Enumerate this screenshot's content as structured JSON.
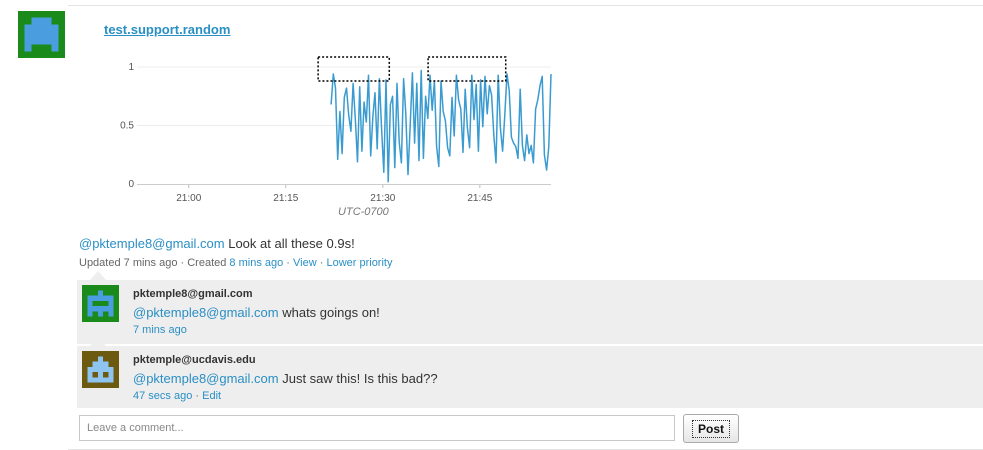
{
  "topic": {
    "title": "test.support.random"
  },
  "chart_data": {
    "type": "line",
    "ylim": [
      0,
      1
    ],
    "y_ticks": [
      "0",
      "0.5",
      "1"
    ],
    "x_ticks": [
      "21:00",
      "21:15",
      "21:30",
      "21:45"
    ],
    "xlabel": "UTC-0700",
    "series_color": "#3a9bd0",
    "series": [
      {
        "values": [
          0.68,
          0.94,
          0.82,
          0.21,
          0.62,
          0.26,
          0.74,
          0.82,
          0.59,
          0.45,
          0.86,
          0.56,
          0.19,
          0.83,
          0.28,
          0.7,
          0.53,
          0.93,
          0.24,
          0.58,
          0.78,
          0.3,
          0.9,
          0.47,
          0.1,
          0.89,
          0.02,
          0.68,
          0.75,
          0.14,
          0.86,
          0.36,
          0.18,
          0.9,
          0.6,
          0.08,
          0.5,
          0.95,
          0.35,
          0.86,
          0.2,
          0.97,
          0.22,
          0.75,
          0.56,
          0.93,
          0.63,
          0.88,
          0.32,
          0.15,
          0.88,
          0.62,
          0.54,
          0.31,
          0.24,
          0.74,
          0.41,
          0.93,
          0.72,
          0.64,
          0.27,
          0.81,
          0.48,
          0.31,
          0.93,
          0.55,
          0.85,
          0.28,
          0.89,
          0.49,
          0.92,
          0.6,
          0.84,
          0.76,
          0.42,
          0.18,
          0.93,
          0.48,
          0.28,
          0.59,
          0.94,
          0.8,
          0.4,
          0.35,
          0.32,
          0.22,
          0.81,
          0.33,
          0.2,
          0.42,
          0.26,
          0.33,
          0.18,
          0.64,
          0.72,
          0.84,
          0.92,
          0.25,
          0.12,
          0.32,
          0.94
        ],
        "x_start": "21:22",
        "x_end": "21:56"
      }
    ],
    "highlight_ranges": [
      [
        "21:20",
        "21:31"
      ],
      [
        "21:37",
        "21:49"
      ]
    ]
  },
  "post": {
    "mention": "@pktemple8@gmail.com",
    "text": " Look at all these 0.9s!",
    "updated": "Updated 7 mins ago",
    "sep1": " · Created ",
    "created": "8 mins ago",
    "sep2": " · ",
    "view": "View",
    "sep3": " · ",
    "priority": "Lower priority"
  },
  "comments": [
    {
      "author": "pktemple8@gmail.com",
      "mention": "@pktemple8@gmail.com",
      "text": " whats goings on!",
      "time": "7 mins ago",
      "avatar_fg": "#4a9ee0",
      "avatar_bg": "#1a8a1a"
    },
    {
      "author": "pktemple@ucdavis.edu",
      "mention": "@pktemple8@gmail.com",
      "text": " Just saw this! Is this bad??",
      "time": "47 secs ago",
      "sep": " · ",
      "edit": "Edit",
      "avatar_fg": "#8ec4f0",
      "avatar_bg": "#6b5a10"
    }
  ],
  "composer": {
    "placeholder": "Leave a comment...",
    "post_label": "Post"
  },
  "topic_avatar": {
    "fg": "#4a9ee0",
    "bg": "#1a8a1a"
  }
}
